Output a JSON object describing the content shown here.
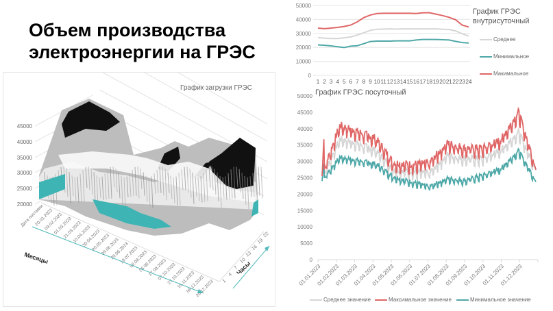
{
  "slide": {
    "title_line1": "Объем производства",
    "title_line2": "электроэнергии на ГРЭС"
  },
  "colors": {
    "avg": "#d6d6d6",
    "max": "#e06666",
    "min": "#4fa8a8",
    "grid": "#e6e6e6",
    "axis_text": "#777777"
  },
  "chart_data": [
    {
      "id": "load-3d",
      "type": "surface",
      "title": "График загрузки ГРЭС",
      "xlabel": "Месяцы",
      "ylabel": "Часы",
      "z_ticks": [
        "20000",
        "25000",
        "30000",
        "35000",
        "40000",
        "45000"
      ],
      "x_ticks": [
        "Дата поставки",
        "20.01.2023",
        "09.02.2023",
        "01.03.2023",
        "21.03.2023",
        "10.04.2023",
        "30.04.2023",
        "20.05.2023",
        "09.06.2023",
        "29.06.2023",
        "19.07.2023",
        "08.08.2023",
        "28.08.2023",
        "17.09.2023",
        "07.10.2023",
        "27.10.2023",
        "16.11.2023",
        "06.12.2023",
        "26.12.2023"
      ],
      "y_ticks": [
        "1",
        "4",
        "7",
        "10",
        "13",
        "16",
        "19",
        "22"
      ],
      "zlim": [
        20000,
        45000
      ]
    },
    {
      "id": "intraday",
      "type": "line",
      "title_line1": "График ГРЭС",
      "title_line2": "внутрисуточный",
      "categories": [
        "1",
        "2",
        "3",
        "4",
        "5",
        "6",
        "7",
        "8",
        "9",
        "10",
        "11",
        "12",
        "13",
        "14",
        "15",
        "16",
        "17",
        "18",
        "19",
        "20",
        "21",
        "22",
        "23",
        "24"
      ],
      "y_ticks": [
        "0",
        "10000",
        "20000",
        "30000",
        "40000",
        "50000"
      ],
      "ylim": [
        0,
        50000
      ],
      "legend_position": "right",
      "series": [
        {
          "name": "Среднее",
          "color": "#d6d6d6",
          "values": [
            27000,
            26600,
            26300,
            26300,
            26900,
            27500,
            28800,
            30500,
            32200,
            33000,
            33100,
            33300,
            33100,
            33300,
            33300,
            33300,
            33300,
            33300,
            33300,
            33000,
            32800,
            31800,
            29800,
            28100
          ]
        },
        {
          "name": "Минимальное",
          "color": "#4fa8a8",
          "values": [
            21800,
            21500,
            21100,
            20500,
            19900,
            20900,
            21200,
            22700,
            24200,
            24500,
            24500,
            24500,
            24700,
            24700,
            24700,
            25300,
            25700,
            25700,
            25700,
            25500,
            25300,
            24300,
            23500,
            23200
          ]
        },
        {
          "name": "Макимальное",
          "color": "#e06666",
          "values": [
            33800,
            33400,
            33800,
            34300,
            35000,
            36000,
            38300,
            41300,
            43200,
            44200,
            44400,
            44400,
            44400,
            44400,
            44400,
            44200,
            44800,
            44800,
            43800,
            42800,
            41500,
            39800,
            36000,
            34600
          ]
        }
      ]
    },
    {
      "id": "daily",
      "type": "line",
      "title": "График ГРЭС посуточный",
      "x_ticks": [
        "01.01.2023",
        "01.02.2023",
        "01.03.2023",
        "01.04.2023",
        "01.05.2023",
        "01.06.2023",
        "01.07.2023",
        "01.08.2023",
        "01.09.2023",
        "01.10.2023",
        "01.11.2023",
        "01.12.2023"
      ],
      "y_ticks": [
        "0",
        "5000",
        "10000",
        "15000",
        "20000",
        "25000",
        "30000",
        "35000",
        "40000",
        "45000",
        "50000"
      ],
      "ylim": [
        0,
        50000
      ],
      "legend_position": "bottom",
      "series": [
        {
          "name": "Среднее значение",
          "color": "#d6d6d6",
          "monthly_approx": [
            24500,
            36500,
            35000,
            33000,
            27000,
            26500,
            26000,
            31500,
            30500,
            30500,
            33000,
            38500,
            27000
          ]
        },
        {
          "name": "Максимальное значение",
          "color": "#e06666",
          "monthly_approx": [
            25500,
            40500,
            38500,
            36500,
            29000,
            28500,
            29000,
            35000,
            33500,
            33500,
            36000,
            44500,
            27000
          ]
        },
        {
          "name": "Минимальное значение",
          "color": "#4fa8a8",
          "monthly_approx": [
            24000,
            31000,
            30000,
            29000,
            25000,
            23500,
            22000,
            24500,
            24000,
            25500,
            27500,
            33000,
            23500
          ]
        }
      ]
    }
  ]
}
